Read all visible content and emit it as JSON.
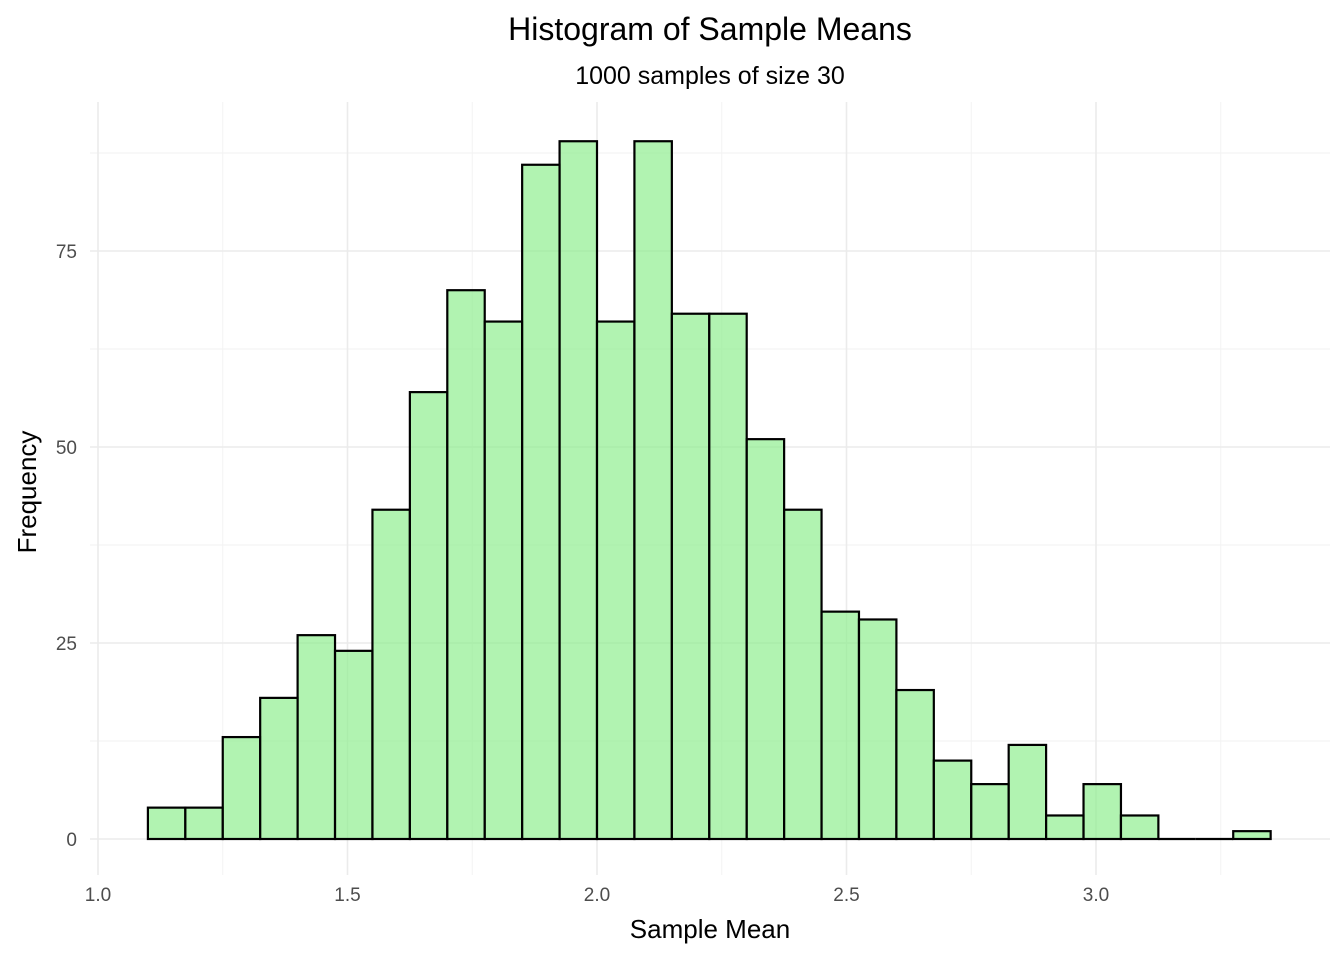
{
  "chart_data": {
    "type": "bar",
    "title": "Histogram of Sample Means",
    "subtitle": "1000 samples of size 30",
    "xlabel": "Sample Mean",
    "ylabel": "Frequency",
    "bar_fill": "#90ee90",
    "bar_outline": "#000000",
    "grid": true,
    "legend": "none",
    "xlim": [
      1.0,
      3.4
    ],
    "ylim": [
      0,
      95
    ],
    "x_ticks": [
      1.0,
      1.5,
      2.0,
      2.5,
      3.0
    ],
    "x_tick_labels": [
      "1.0",
      "1.5",
      "2.0",
      "2.5",
      "3.0"
    ],
    "y_ticks": [
      0,
      25,
      50,
      75
    ],
    "y_tick_labels": [
      "0",
      "25",
      "50",
      "75"
    ],
    "bin_width": 0.075,
    "bins": [
      {
        "x0": 1.1,
        "x1": 1.175,
        "count": 4
      },
      {
        "x0": 1.175,
        "x1": 1.25,
        "count": 4
      },
      {
        "x0": 1.25,
        "x1": 1.325,
        "count": 13
      },
      {
        "x0": 1.325,
        "x1": 1.4,
        "count": 18
      },
      {
        "x0": 1.4,
        "x1": 1.475,
        "count": 26
      },
      {
        "x0": 1.475,
        "x1": 1.55,
        "count": 24
      },
      {
        "x0": 1.55,
        "x1": 1.625,
        "count": 42
      },
      {
        "x0": 1.625,
        "x1": 1.7,
        "count": 57
      },
      {
        "x0": 1.7,
        "x1": 1.775,
        "count": 70
      },
      {
        "x0": 1.775,
        "x1": 1.85,
        "count": 66
      },
      {
        "x0": 1.85,
        "x1": 1.925,
        "count": 86
      },
      {
        "x0": 1.925,
        "x1": 2.0,
        "count": 89
      },
      {
        "x0": 2.0,
        "x1": 2.075,
        "count": 66
      },
      {
        "x0": 2.075,
        "x1": 2.15,
        "count": 89
      },
      {
        "x0": 2.15,
        "x1": 2.225,
        "count": 67
      },
      {
        "x0": 2.225,
        "x1": 2.3,
        "count": 67
      },
      {
        "x0": 2.3,
        "x1": 2.375,
        "count": 51
      },
      {
        "x0": 2.375,
        "x1": 2.45,
        "count": 42
      },
      {
        "x0": 2.45,
        "x1": 2.525,
        "count": 29
      },
      {
        "x0": 2.525,
        "x1": 2.6,
        "count": 28
      },
      {
        "x0": 2.6,
        "x1": 2.675,
        "count": 19
      },
      {
        "x0": 2.675,
        "x1": 2.75,
        "count": 10
      },
      {
        "x0": 2.75,
        "x1": 2.825,
        "count": 7
      },
      {
        "x0": 2.825,
        "x1": 2.9,
        "count": 12
      },
      {
        "x0": 2.9,
        "x1": 2.975,
        "count": 3
      },
      {
        "x0": 2.975,
        "x1": 3.05,
        "count": 7
      },
      {
        "x0": 3.05,
        "x1": 3.125,
        "count": 3
      },
      {
        "x0": 3.125,
        "x1": 3.2,
        "count": 0
      },
      {
        "x0": 3.2,
        "x1": 3.275,
        "count": 0
      },
      {
        "x0": 3.275,
        "x1": 3.35,
        "count": 1
      }
    ]
  }
}
